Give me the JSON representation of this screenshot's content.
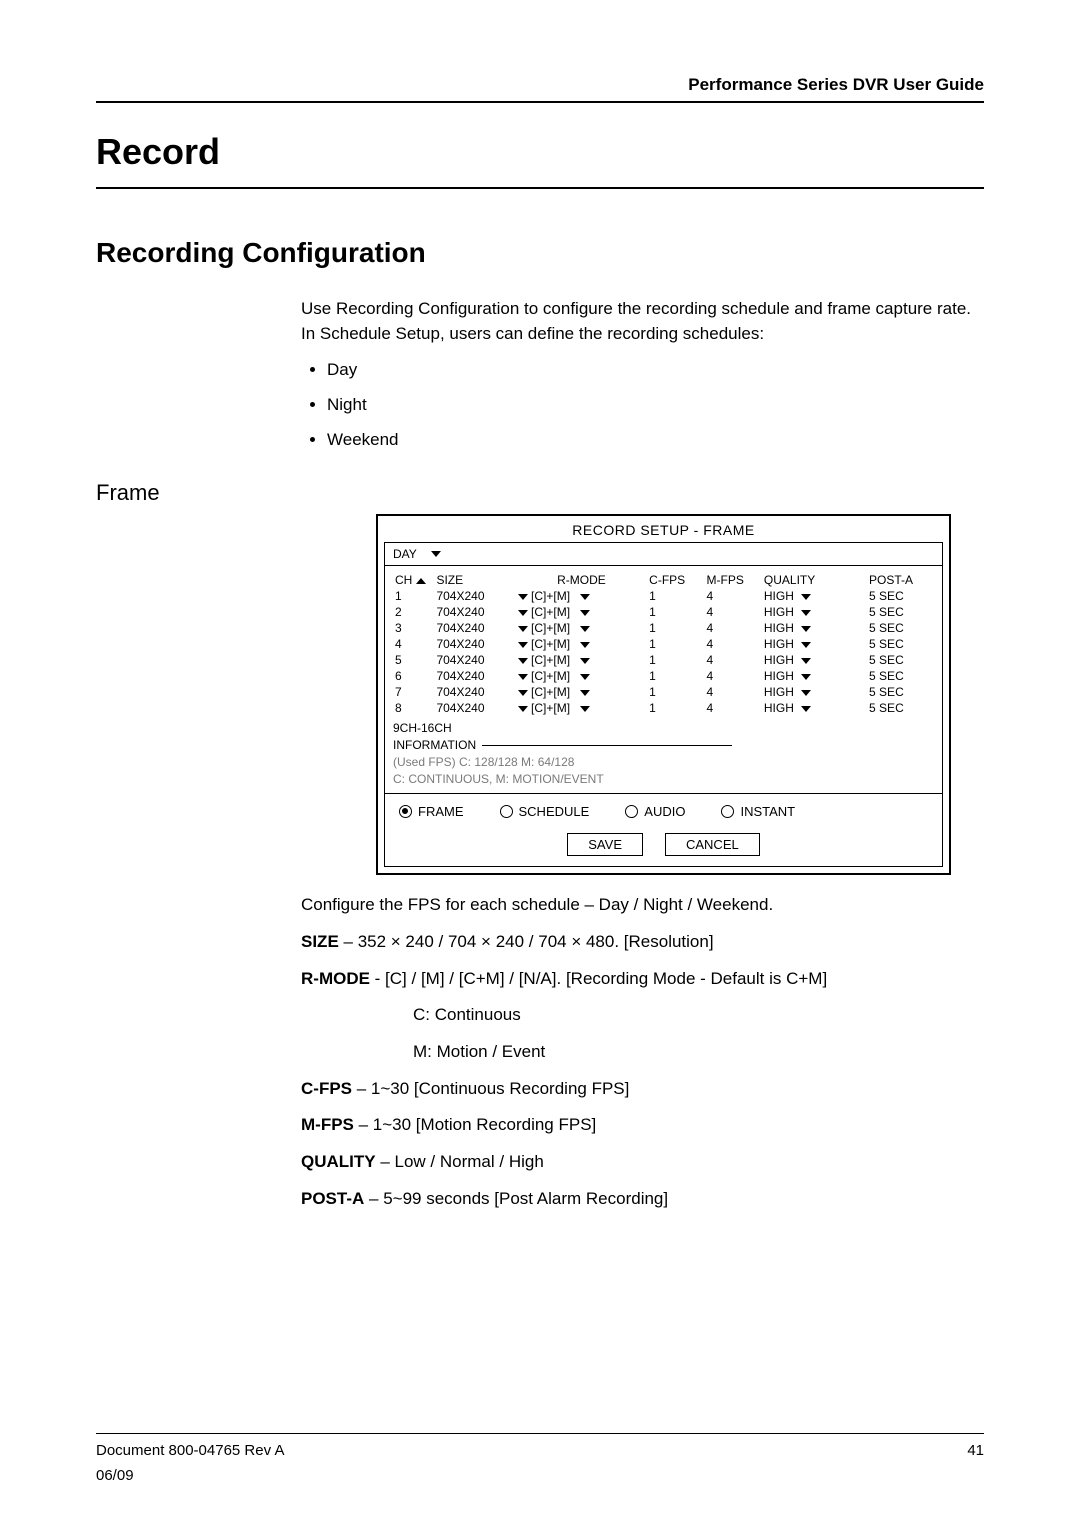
{
  "header": {
    "guide_title": "Performance Series DVR User Guide"
  },
  "h1": "Record",
  "h2": "Recording Configuration",
  "intro": "Use Recording Configuration to configure the recording schedule and frame capture rate. In Schedule Setup, users can define the recording schedules:",
  "bullets": [
    "Day",
    "Night",
    "Weekend"
  ],
  "h3": "Frame",
  "screenshot": {
    "title": "RECORD SETUP - FRAME",
    "day_selector_label": "DAY",
    "columns": {
      "ch": "CH",
      "size": "SIZE",
      "rmode": "R-MODE",
      "cfps": "C-FPS",
      "mfps": "M-FPS",
      "quality": "QUALITY",
      "posta": "POST-A"
    },
    "rows": [
      {
        "ch": "1",
        "size": "704X240",
        "rmode": "[C]+[M]",
        "cfps": "1",
        "mfps": "4",
        "quality": "HIGH",
        "posta": "5 SEC"
      },
      {
        "ch": "2",
        "size": "704X240",
        "rmode": "[C]+[M]",
        "cfps": "1",
        "mfps": "4",
        "quality": "HIGH",
        "posta": "5 SEC"
      },
      {
        "ch": "3",
        "size": "704X240",
        "rmode": "[C]+[M]",
        "cfps": "1",
        "mfps": "4",
        "quality": "HIGH",
        "posta": "5 SEC"
      },
      {
        "ch": "4",
        "size": "704X240",
        "rmode": "[C]+[M]",
        "cfps": "1",
        "mfps": "4",
        "quality": "HIGH",
        "posta": "5 SEC"
      },
      {
        "ch": "5",
        "size": "704X240",
        "rmode": "[C]+[M]",
        "cfps": "1",
        "mfps": "4",
        "quality": "HIGH",
        "posta": "5 SEC"
      },
      {
        "ch": "6",
        "size": "704X240",
        "rmode": "[C]+[M]",
        "cfps": "1",
        "mfps": "4",
        "quality": "HIGH",
        "posta": "5 SEC"
      },
      {
        "ch": "7",
        "size": "704X240",
        "rmode": "[C]+[M]",
        "cfps": "1",
        "mfps": "4",
        "quality": "HIGH",
        "posta": "5 SEC"
      },
      {
        "ch": "8",
        "size": "704X240",
        "rmode": "[C]+[M]",
        "cfps": "1",
        "mfps": "4",
        "quality": "HIGH",
        "posta": "5 SEC"
      }
    ],
    "sub": {
      "nextch": "9CH-16CH",
      "info_label": "INFORMATION",
      "used_fps": "(Used FPS)    C: 128/128            M: 64/128",
      "legend": "C: CONTINUOUS, M: MOTION/EVENT"
    },
    "tabs": {
      "frame": "FRAME",
      "schedule": "SCHEDULE",
      "audio": "AUDIO",
      "instant": "INSTANT",
      "selected": "frame"
    },
    "buttons": {
      "save": "SAVE",
      "cancel": "CANCEL"
    },
    "colors": {
      "border": "#000000",
      "grey_text": "#7a7a7a",
      "bg": "#ffffff"
    }
  },
  "config_line": "Configure the FPS for each schedule – Day / Night / Weekend.",
  "defs": {
    "size": {
      "label": "SIZE",
      "text": " – 352 × 240 / 704 × 240 / 704 × 480.  [Resolution]"
    },
    "rmode": {
      "label": "R-MODE",
      "text": " -   [C] / [M] / [C+M] / [N/A].  [Recording Mode - Default is C+M]",
      "c": "C: Continuous",
      "m": "M: Motion / Event"
    },
    "cfps": {
      "label": "C-FPS",
      "text": " – 1~30 [Continuous Recording FPS]"
    },
    "mfps": {
      "label": "M-FPS",
      "text": " – 1~30  [Motion Recording FPS]"
    },
    "quality": {
      "label": "QUALITY",
      "text": " – Low / Normal / High"
    },
    "posta": {
      "label": "POST-A",
      "text": " – 5~99 seconds  [Post Alarm Recording]"
    }
  },
  "footer": {
    "doc": "Document 800-04765  Rev A",
    "page": "41",
    "date": "06/09"
  }
}
